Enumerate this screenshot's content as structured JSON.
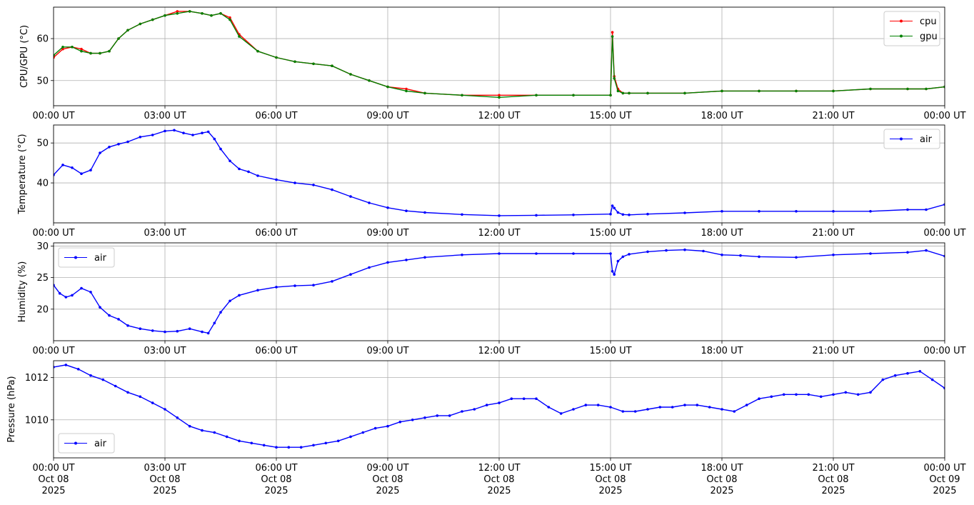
{
  "x_ticks": [
    "00:00 UT",
    "03:00 UT",
    "06:00 UT",
    "09:00 UT",
    "12:00 UT",
    "15:00 UT",
    "18:00 UT",
    "21:00 UT",
    "00:00 UT"
  ],
  "x_date_lines": [
    "Oct 08",
    "Oct 08",
    "Oct 08",
    "Oct 08",
    "Oct 08",
    "Oct 08",
    "Oct 08",
    "Oct 08",
    "Oct 09"
  ],
  "x_year_lines": [
    "2025",
    "2025",
    "2025",
    "2025",
    "2025",
    "2025",
    "2025",
    "2025",
    "2025"
  ],
  "chart_data": [
    {
      "type": "line",
      "ylabel": "CPU/GPU (°C)",
      "xlim": [
        "2025-10-08 00:00",
        "2025-10-09 00:00"
      ],
      "ylim": [
        44,
        67.5
      ],
      "yticks": [
        50,
        60
      ],
      "grid": true,
      "legend": "top-right",
      "series": [
        {
          "name": "cpu",
          "color": "#ff0000",
          "x": [
            "00:00",
            "00:15",
            "00:30",
            "00:45",
            "01:00",
            "01:15",
            "01:30",
            "01:45",
            "02:00",
            "02:20",
            "02:40",
            "03:00",
            "03:20",
            "03:40",
            "04:00",
            "04:15",
            "04:30",
            "04:45",
            "05:00",
            "05:30",
            "06:00",
            "06:30",
            "07:00",
            "07:30",
            "08:00",
            "08:30",
            "09:00",
            "09:30",
            "10:00",
            "11:00",
            "12:00",
            "13:00",
            "14:00",
            "15:00",
            "15:03",
            "15:06",
            "15:12",
            "15:20",
            "15:30",
            "16:00",
            "17:00",
            "18:00",
            "19:00",
            "20:00",
            "21:00",
            "22:00",
            "23:00",
            "23:30",
            "24:00"
          ],
          "y": [
            55.5,
            57.5,
            58,
            57.5,
            56.5,
            56.5,
            57,
            60,
            62,
            63.5,
            64.5,
            65.5,
            66.5,
            66.5,
            66,
            65.5,
            66,
            65,
            61,
            57,
            55.5,
            54.5,
            54,
            53.5,
            51.5,
            50,
            48.5,
            48,
            47,
            46.5,
            46.5,
            46.5,
            46.5,
            46.5,
            61.5,
            51,
            48,
            47,
            47,
            47,
            47,
            47.5,
            47.5,
            47.5,
            47.5,
            48,
            48,
            48,
            48.5
          ]
        },
        {
          "name": "gpu",
          "color": "#008000",
          "x": [
            "00:00",
            "00:15",
            "00:30",
            "00:45",
            "01:00",
            "01:15",
            "01:30",
            "01:45",
            "02:00",
            "02:20",
            "02:40",
            "03:00",
            "03:20",
            "03:40",
            "04:00",
            "04:15",
            "04:30",
            "04:45",
            "05:00",
            "05:30",
            "06:00",
            "06:30",
            "07:00",
            "07:30",
            "08:00",
            "08:30",
            "09:00",
            "09:30",
            "10:00",
            "11:00",
            "12:00",
            "13:00",
            "14:00",
            "15:00",
            "15:03",
            "15:06",
            "15:12",
            "15:20",
            "15:30",
            "16:00",
            "17:00",
            "18:00",
            "19:00",
            "20:00",
            "21:00",
            "22:00",
            "23:00",
            "23:30",
            "24:00"
          ],
          "y": [
            56,
            58,
            58,
            57,
            56.5,
            56.5,
            57,
            60,
            62,
            63.5,
            64.5,
            65.5,
            66,
            66.5,
            66,
            65.5,
            66,
            64.5,
            60.5,
            57,
            55.5,
            54.5,
            54,
            53.5,
            51.5,
            50,
            48.5,
            47.5,
            47,
            46.5,
            46,
            46.5,
            46.5,
            46.5,
            60.5,
            50.5,
            47.5,
            47,
            47,
            47,
            47,
            47.5,
            47.5,
            47.5,
            47.5,
            48,
            48,
            48,
            48.5
          ]
        }
      ]
    },
    {
      "type": "line",
      "ylabel": "Temperature (°C)",
      "xlim": [
        "2025-10-08 00:00",
        "2025-10-09 00:00"
      ],
      "ylim": [
        30,
        54.5
      ],
      "yticks": [
        40,
        50
      ],
      "grid": true,
      "legend": "top-right",
      "series": [
        {
          "name": "air",
          "color": "#0000ff",
          "x": [
            "00:00",
            "00:15",
            "00:30",
            "00:45",
            "01:00",
            "01:15",
            "01:30",
            "01:45",
            "02:00",
            "02:20",
            "02:40",
            "03:00",
            "03:15",
            "03:30",
            "03:45",
            "04:00",
            "04:10",
            "04:20",
            "04:30",
            "04:45",
            "05:00",
            "05:15",
            "05:30",
            "06:00",
            "06:30",
            "07:00",
            "07:30",
            "08:00",
            "08:30",
            "09:00",
            "09:30",
            "10:00",
            "11:00",
            "12:00",
            "13:00",
            "14:00",
            "15:00",
            "15:03",
            "15:06",
            "15:12",
            "15:20",
            "15:30",
            "16:00",
            "17:00",
            "18:00",
            "19:00",
            "20:00",
            "21:00",
            "22:00",
            "23:00",
            "23:30",
            "24:00"
          ],
          "y": [
            42,
            44.5,
            43.8,
            42.3,
            43.2,
            47.5,
            49,
            49.7,
            50.3,
            51.5,
            52,
            53,
            53.2,
            52.5,
            52,
            52.5,
            52.8,
            51,
            48.5,
            45.5,
            43.5,
            42.8,
            41.8,
            40.8,
            40,
            39.5,
            38.3,
            36.6,
            35,
            33.8,
            33,
            32.6,
            32.1,
            31.8,
            31.9,
            32,
            32.2,
            34.3,
            33.7,
            32.6,
            32.1,
            32,
            32.2,
            32.5,
            32.9,
            32.9,
            32.9,
            32.9,
            32.9,
            33.3,
            33.3,
            34.6
          ]
        }
      ]
    },
    {
      "type": "line",
      "ylabel": "Humidity (%)",
      "xlim": [
        "2025-10-08 00:00",
        "2025-10-09 00:00"
      ],
      "ylim": [
        15,
        30.5
      ],
      "yticks": [
        20,
        25,
        30
      ],
      "grid": true,
      "legend": "top-left",
      "series": [
        {
          "name": "air",
          "color": "#0000ff",
          "x": [
            "00:00",
            "00:10",
            "00:20",
            "00:30",
            "00:45",
            "01:00",
            "01:15",
            "01:30",
            "01:45",
            "02:00",
            "02:20",
            "02:40",
            "03:00",
            "03:20",
            "03:40",
            "04:00",
            "04:10",
            "04:20",
            "04:30",
            "04:45",
            "05:00",
            "05:30",
            "06:00",
            "06:30",
            "07:00",
            "07:30",
            "08:00",
            "08:30",
            "09:00",
            "09:30",
            "10:00",
            "11:00",
            "12:00",
            "13:00",
            "14:00",
            "15:00",
            "15:03",
            "15:06",
            "15:12",
            "15:20",
            "15:30",
            "16:00",
            "16:30",
            "17:00",
            "17:30",
            "18:00",
            "18:30",
            "19:00",
            "20:00",
            "21:00",
            "22:00",
            "23:00",
            "23:30",
            "24:00"
          ],
          "y": [
            23.8,
            22.5,
            21.9,
            22.2,
            23.3,
            22.7,
            20.3,
            19,
            18.4,
            17.4,
            16.9,
            16.6,
            16.4,
            16.5,
            16.9,
            16.4,
            16.2,
            17.8,
            19.5,
            21.3,
            22.2,
            23,
            23.5,
            23.7,
            23.8,
            24.4,
            25.5,
            26.6,
            27.4,
            27.8,
            28.2,
            28.6,
            28.8,
            28.8,
            28.8,
            28.8,
            26,
            25.5,
            27.6,
            28.3,
            28.7,
            29.1,
            29.3,
            29.4,
            29.2,
            28.6,
            28.5,
            28.3,
            28.2,
            28.6,
            28.8,
            29,
            29.3,
            28.4
          ]
        }
      ]
    },
    {
      "type": "line",
      "ylabel": "Pressure (hPa)",
      "xlim": [
        "2025-10-08 00:00",
        "2025-10-09 00:00"
      ],
      "ylim": [
        1008.2,
        1012.8
      ],
      "yticks": [
        1010,
        1012
      ],
      "grid": true,
      "legend": "bottom-left",
      "series": [
        {
          "name": "air",
          "color": "#0000ff",
          "x": [
            "00:00",
            "00:20",
            "00:40",
            "01:00",
            "01:20",
            "01:40",
            "02:00",
            "02:20",
            "02:40",
            "03:00",
            "03:20",
            "03:40",
            "04:00",
            "04:20",
            "04:40",
            "05:00",
            "05:20",
            "05:40",
            "06:00",
            "06:20",
            "06:40",
            "07:00",
            "07:20",
            "07:40",
            "08:00",
            "08:20",
            "08:40",
            "09:00",
            "09:20",
            "09:40",
            "10:00",
            "10:20",
            "10:40",
            "11:00",
            "11:20",
            "11:40",
            "12:00",
            "12:20",
            "12:40",
            "13:00",
            "13:20",
            "13:40",
            "14:00",
            "14:20",
            "14:40",
            "15:00",
            "15:20",
            "15:40",
            "16:00",
            "16:20",
            "16:40",
            "17:00",
            "17:20",
            "17:40",
            "18:00",
            "18:20",
            "18:40",
            "19:00",
            "19:20",
            "19:40",
            "20:00",
            "20:20",
            "20:40",
            "21:00",
            "21:20",
            "21:40",
            "22:00",
            "22:20",
            "22:40",
            "23:00",
            "23:20",
            "23:40",
            "24:00"
          ],
          "y": [
            1012.5,
            1012.6,
            1012.4,
            1012.1,
            1011.9,
            1011.6,
            1011.3,
            1011.1,
            1010.8,
            1010.5,
            1010.1,
            1009.7,
            1009.5,
            1009.4,
            1009.2,
            1009,
            1008.9,
            1008.8,
            1008.7,
            1008.7,
            1008.7,
            1008.8,
            1008.9,
            1009,
            1009.2,
            1009.4,
            1009.6,
            1009.7,
            1009.9,
            1010,
            1010.1,
            1010.2,
            1010.2,
            1010.4,
            1010.5,
            1010.7,
            1010.8,
            1011,
            1011,
            1011,
            1010.6,
            1010.3,
            1010.5,
            1010.7,
            1010.7,
            1010.6,
            1010.4,
            1010.4,
            1010.5,
            1010.6,
            1010.6,
            1010.7,
            1010.7,
            1010.6,
            1010.5,
            1010.4,
            1010.7,
            1011,
            1011.1,
            1011.2,
            1011.2,
            1011.2,
            1011.1,
            1011.2,
            1011.3,
            1011.2,
            1011.3,
            1011.9,
            1012.1,
            1012.2,
            1012.3,
            1011.9,
            1011.5
          ]
        }
      ]
    }
  ]
}
